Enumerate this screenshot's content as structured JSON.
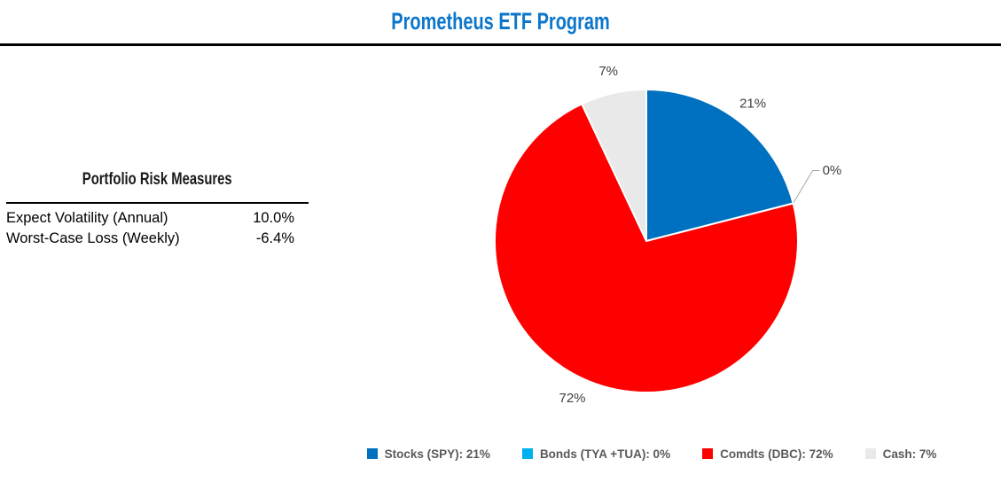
{
  "header": {
    "title": "Prometheus ETF Program",
    "title_color": "#0B76CB"
  },
  "risk_table": {
    "title": "Portfolio Risk Measures",
    "rows": [
      {
        "label": "Expect Volatility (Annual)",
        "value": "10.0%"
      },
      {
        "label": "Worst-Case Loss (Weekly)",
        "value": "-6.4%"
      }
    ]
  },
  "chart_data": {
    "type": "pie",
    "title": "",
    "unit": "%",
    "direction": "clockwise",
    "start_angle_deg": 0,
    "legend_position": "bottom",
    "slices": [
      {
        "label": "Stocks (SPY)",
        "value": 21,
        "color": "#0070C0",
        "data_label": "21%"
      },
      {
        "label": "Bonds (TYA +TUA)",
        "value": 0,
        "color": "#00B0F0",
        "data_label": "0%"
      },
      {
        "label": "Comdts (DBC)",
        "value": 72,
        "color": "#FF0000",
        "data_label": "72%"
      },
      {
        "label": "Cash",
        "value": 7,
        "color": "#E9E9E9",
        "data_label": "7%"
      }
    ],
    "legend": [
      "Stocks (SPY): 21%",
      "Bonds (TYA +TUA): 0%",
      "Comdts (DBC): 72%",
      "Cash: 7%"
    ],
    "data_label_color": "#404040",
    "leader_line_color": "#A6A6A6",
    "slice_border_color": "#FFFFFF"
  }
}
